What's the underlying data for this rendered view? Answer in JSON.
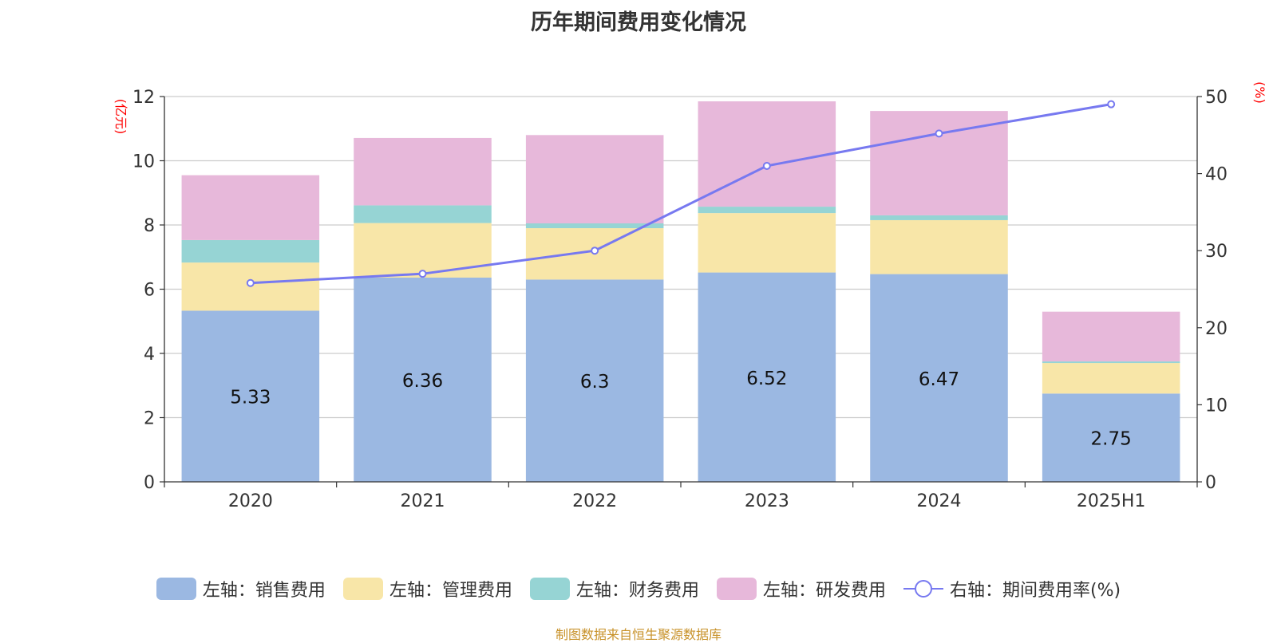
{
  "title": "历年期间费用变化情况",
  "source": "制图数据来自恒生聚源数据库",
  "chart_data": {
    "type": "bar",
    "stacked": true,
    "categories": [
      "2020",
      "2021",
      "2022",
      "2023",
      "2024",
      "2025H1"
    ],
    "left_axis": {
      "unit": "(亿元)",
      "ylim": [
        0,
        12
      ],
      "ticks": [
        "0",
        "2",
        "4",
        "6",
        "8",
        "10",
        "12"
      ]
    },
    "right_axis": {
      "unit": "(%)",
      "ylim": [
        0,
        50
      ],
      "ticks": [
        "0",
        "10",
        "20",
        "30",
        "40",
        "50"
      ]
    },
    "grid": true,
    "legend_position": "bottom",
    "series": [
      {
        "name": "左轴：销售费用",
        "axis": "left",
        "type": "bar",
        "color": "#9bb8e2",
        "values": [
          5.33,
          6.36,
          6.3,
          6.52,
          6.47,
          2.75
        ],
        "labels": [
          "5.33",
          "6.36",
          "6.3",
          "6.52",
          "6.47",
          "2.75"
        ]
      },
      {
        "name": "左轴：管理费用",
        "axis": "left",
        "type": "bar",
        "color": "#f8e6a8",
        "values": [
          1.5,
          1.7,
          1.6,
          1.85,
          1.68,
          0.95
        ]
      },
      {
        "name": "左轴：财务费用",
        "axis": "left",
        "type": "bar",
        "color": "#96d4d4",
        "values": [
          0.7,
          0.55,
          0.15,
          0.2,
          0.15,
          0.05
        ]
      },
      {
        "name": "左轴：研发费用",
        "axis": "left",
        "type": "bar",
        "color": "#e7b8da",
        "values": [
          2.02,
          2.1,
          2.75,
          3.28,
          3.25,
          1.55
        ]
      },
      {
        "name": "右轴：期间费用率(%)",
        "axis": "right",
        "type": "line",
        "color": "#7779f0",
        "values": [
          25.8,
          27.0,
          30.0,
          41.0,
          45.2,
          49.0
        ]
      }
    ]
  }
}
